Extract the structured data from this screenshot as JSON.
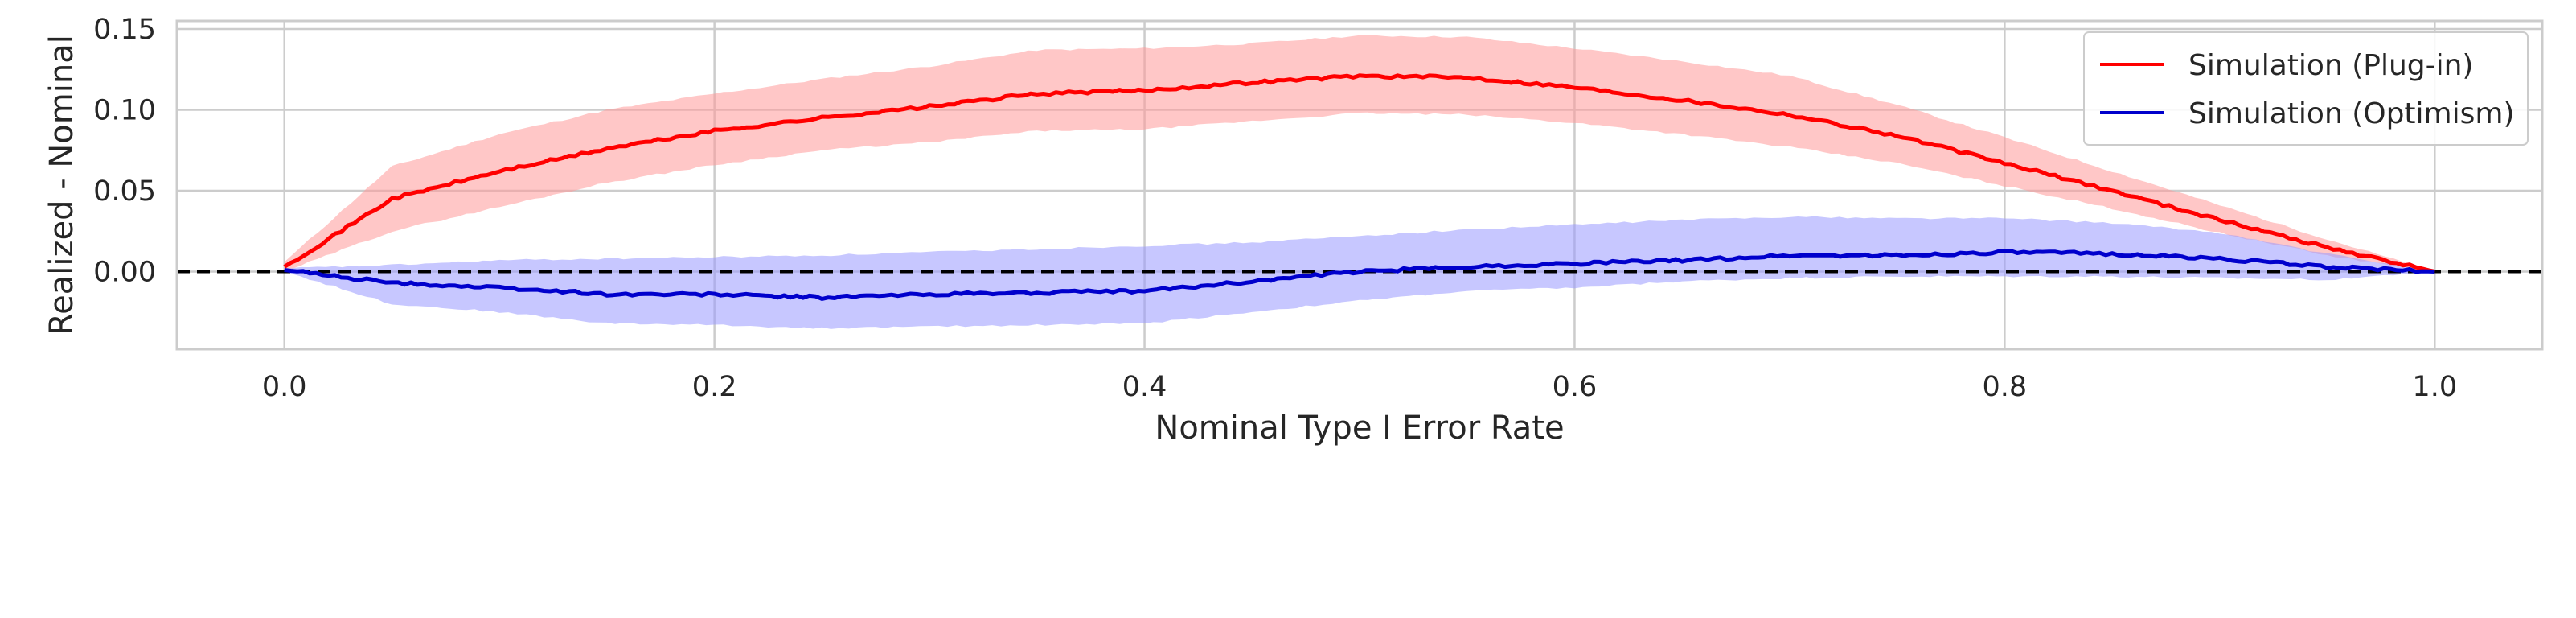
{
  "chart_data": {
    "type": "line",
    "title": "",
    "xlabel": "Nominal Type I Error Rate",
    "ylabel": "Realized - Nominal",
    "xlim": [
      -0.05,
      1.05
    ],
    "ylim": [
      -0.048,
      0.155
    ],
    "xticks": [
      "0.0",
      "0.2",
      "0.4",
      "0.6",
      "0.8",
      "1.0"
    ],
    "yticks": [
      "0.00",
      "0.05",
      "0.10",
      "0.15"
    ],
    "grid": true,
    "legend_position": "top-right",
    "reference_line": {
      "y": 0,
      "style": "dashed",
      "color": "#000000"
    },
    "colors": {
      "plugin": "#ff0000",
      "optimism": "#0000cc"
    },
    "x": [
      0.0,
      0.05,
      0.1,
      0.15,
      0.2,
      0.25,
      0.3,
      0.35,
      0.4,
      0.45,
      0.5,
      0.55,
      0.6,
      0.65,
      0.7,
      0.75,
      0.8,
      0.85,
      0.9,
      0.95,
      1.0
    ],
    "series": [
      {
        "name": "Simulation (Plug-in)",
        "color": "#ff0000",
        "band_color": "#ff9999",
        "values": [
          0.003,
          0.045,
          0.062,
          0.076,
          0.087,
          0.095,
          0.102,
          0.11,
          0.112,
          0.117,
          0.121,
          0.12,
          0.114,
          0.106,
          0.097,
          0.084,
          0.067,
          0.05,
          0.032,
          0.015,
          0.0
        ],
        "lower": [
          0.0,
          0.025,
          0.04,
          0.055,
          0.066,
          0.075,
          0.08,
          0.087,
          0.088,
          0.093,
          0.098,
          0.097,
          0.092,
          0.085,
          0.077,
          0.067,
          0.053,
          0.039,
          0.024,
          0.01,
          0.0
        ],
        "upper": [
          0.006,
          0.065,
          0.085,
          0.1,
          0.11,
          0.119,
          0.127,
          0.137,
          0.138,
          0.141,
          0.146,
          0.145,
          0.138,
          0.13,
          0.121,
          0.103,
          0.083,
          0.062,
          0.041,
          0.02,
          0.0
        ]
      },
      {
        "name": "Simulation (Optimism)",
        "color": "#0000cc",
        "band_color": "#9999ff",
        "values": [
          0.001,
          -0.007,
          -0.01,
          -0.014,
          -0.014,
          -0.016,
          -0.014,
          -0.013,
          -0.012,
          -0.006,
          0.0,
          0.003,
          0.005,
          0.007,
          0.01,
          0.01,
          0.012,
          0.011,
          0.008,
          0.003,
          0.0
        ],
        "lower": [
          0.0,
          -0.02,
          -0.025,
          -0.032,
          -0.033,
          -0.035,
          -0.034,
          -0.033,
          -0.032,
          -0.025,
          -0.018,
          -0.012,
          -0.01,
          -0.006,
          -0.004,
          -0.003,
          -0.003,
          -0.003,
          -0.004,
          -0.005,
          0.0
        ],
        "upper": [
          0.002,
          0.004,
          0.007,
          0.008,
          0.009,
          0.01,
          0.012,
          0.014,
          0.016,
          0.018,
          0.022,
          0.026,
          0.029,
          0.032,
          0.034,
          0.033,
          0.033,
          0.03,
          0.024,
          0.011,
          0.0
        ]
      }
    ]
  }
}
